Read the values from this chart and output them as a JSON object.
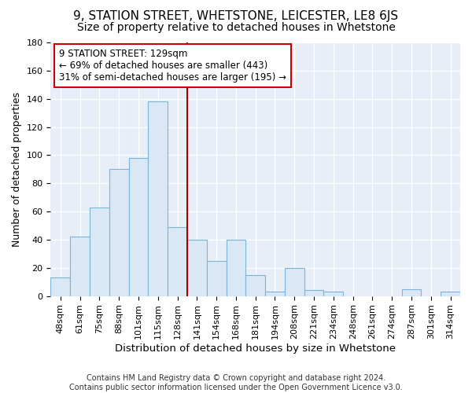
{
  "title": "9, STATION STREET, WHETSTONE, LEICESTER, LE8 6JS",
  "subtitle": "Size of property relative to detached houses in Whetstone",
  "xlabel": "Distribution of detached houses by size in Whetstone",
  "ylabel": "Number of detached properties",
  "categories": [
    "48sqm",
    "61sqm",
    "75sqm",
    "88sqm",
    "101sqm",
    "115sqm",
    "128sqm",
    "141sqm",
    "154sqm",
    "168sqm",
    "181sqm",
    "194sqm",
    "208sqm",
    "221sqm",
    "234sqm",
    "248sqm",
    "261sqm",
    "274sqm",
    "287sqm",
    "301sqm",
    "314sqm"
  ],
  "values": [
    13,
    42,
    63,
    90,
    98,
    138,
    49,
    40,
    25,
    40,
    15,
    3,
    20,
    4,
    3,
    0,
    0,
    0,
    5,
    0,
    3
  ],
  "bar_color": "#dae8f5",
  "bar_edge_color": "#7ab3d8",
  "vline_x": 6.5,
  "vline_color": "#aa0000",
  "annotation_line1": "9 STATION STREET: 129sqm",
  "annotation_line2": "← 69% of detached houses are smaller (443)",
  "annotation_line3": "31% of semi-detached houses are larger (195) →",
  "annotation_box_facecolor": "#ffffff",
  "annotation_box_edgecolor": "#cc0000",
  "ylim": [
    0,
    180
  ],
  "yticks": [
    0,
    20,
    40,
    60,
    80,
    100,
    120,
    140,
    160,
    180
  ],
  "footer": "Contains HM Land Registry data © Crown copyright and database right 2024.\nContains public sector information licensed under the Open Government Licence v3.0.",
  "title_fontsize": 11,
  "subtitle_fontsize": 10,
  "xlabel_fontsize": 9.5,
  "ylabel_fontsize": 9,
  "tick_fontsize": 8,
  "annotation_fontsize": 8.5,
  "footer_fontsize": 7,
  "bg_color": "#ffffff",
  "plot_bg_color": "#e8eef8",
  "grid_color": "#ffffff"
}
